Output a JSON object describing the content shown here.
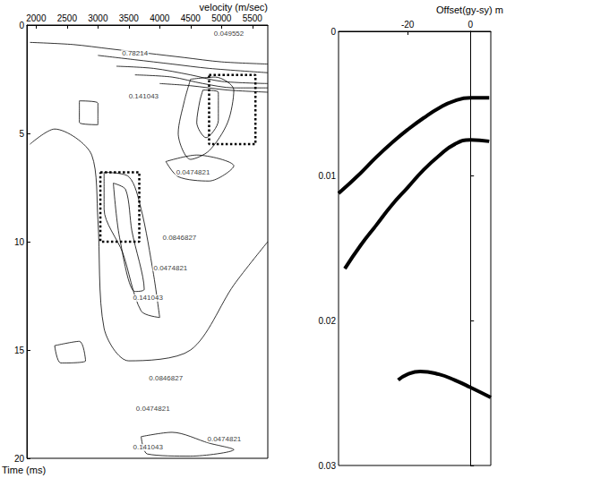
{
  "chart_data": [
    {
      "type": "contour",
      "x_label": "velocity (m/sec)",
      "y_label": "Time (ms)",
      "xlim": [
        1850,
        5750
      ],
      "xticks": [
        2000,
        2500,
        3000,
        3500,
        4000,
        4500,
        5000,
        5500
      ],
      "ylim": [
        0,
        20
      ],
      "yticks": [
        0,
        5,
        10,
        15,
        20
      ],
      "color": "#000000",
      "contours": [
        [
          [
            1900,
            0.8
          ],
          [
            2600,
            0.9
          ],
          [
            3200,
            1.1
          ],
          [
            3800,
            1.3
          ],
          [
            4400,
            1.5
          ],
          [
            5000,
            1.7
          ],
          [
            5750,
            1.8
          ]
        ],
        [
          [
            3000,
            1.4
          ],
          [
            3600,
            1.6
          ],
          [
            4200,
            1.8
          ],
          [
            4800,
            2.0
          ],
          [
            5750,
            2.2
          ]
        ],
        [
          [
            3300,
            1.9
          ],
          [
            3900,
            2.0
          ],
          [
            4500,
            2.3
          ],
          [
            5000,
            2.6
          ],
          [
            5750,
            2.7
          ]
        ],
        [
          [
            3600,
            2.3
          ],
          [
            4200,
            2.4
          ],
          [
            4700,
            2.7
          ],
          [
            5200,
            2.9
          ],
          [
            5750,
            2.9
          ]
        ],
        [
          [
            4000,
            2.7
          ],
          [
            4500,
            2.8
          ],
          [
            5100,
            3.0
          ],
          [
            5750,
            3.1
          ]
        ],
        [
          [
            4500,
            2.5
          ],
          [
            4900,
            2.4
          ],
          [
            5200,
            3.0
          ],
          [
            5100,
            4.5
          ],
          [
            4800,
            5.8
          ],
          [
            4500,
            6.2
          ],
          [
            4300,
            5.0
          ],
          [
            4400,
            3.5
          ],
          [
            4500,
            2.5
          ]
        ],
        [
          [
            4700,
            3.0
          ],
          [
            4950,
            3.1
          ],
          [
            4950,
            4.4
          ],
          [
            4750,
            5.2
          ],
          [
            4600,
            4.5
          ],
          [
            4650,
            3.5
          ],
          [
            4700,
            3.0
          ]
        ],
        [
          [
            4100,
            6.3
          ],
          [
            4600,
            6.0
          ],
          [
            5200,
            6.5
          ],
          [
            4800,
            7.2
          ],
          [
            4300,
            7.0
          ],
          [
            4100,
            6.3
          ]
        ],
        [
          [
            3100,
            6.8
          ],
          [
            3500,
            7.0
          ],
          [
            3700,
            8.5
          ],
          [
            3900,
            11.5
          ],
          [
            4000,
            13.5
          ],
          [
            3700,
            13.2
          ],
          [
            3400,
            10.5
          ],
          [
            3100,
            8.5
          ],
          [
            3100,
            6.8
          ]
        ],
        [
          [
            3250,
            7.3
          ],
          [
            3450,
            7.6
          ],
          [
            3550,
            9.5
          ],
          [
            3750,
            12.2
          ],
          [
            3600,
            12.3
          ],
          [
            3350,
            9.8
          ],
          [
            3250,
            7.3
          ]
        ],
        [
          [
            3700,
            19.0
          ],
          [
            4200,
            18.8
          ],
          [
            4800,
            19.3
          ],
          [
            5200,
            19.6
          ],
          [
            4500,
            19.9
          ],
          [
            3800,
            19.8
          ],
          [
            3700,
            19.0
          ]
        ],
        [
          [
            2700,
            3.5
          ],
          [
            3000,
            3.6
          ],
          [
            3000,
            4.6
          ],
          [
            2700,
            4.5
          ],
          [
            2700,
            3.5
          ]
        ],
        [
          [
            2300,
            14.8
          ],
          [
            2700,
            14.6
          ],
          [
            2800,
            15.5
          ],
          [
            2400,
            15.6
          ],
          [
            2300,
            14.8
          ]
        ],
        [
          [
            1900,
            5.5
          ],
          [
            2300,
            4.8
          ],
          [
            2900,
            6.0
          ],
          [
            3000,
            9.0
          ],
          [
            3100,
            14.0
          ],
          [
            3500,
            15.5
          ],
          [
            4500,
            15.0
          ],
          [
            5200,
            12.0
          ],
          [
            5750,
            10.0
          ]
        ]
      ],
      "annotations": [
        {
          "text": "0.049552",
          "x": 5120,
          "y": 0.4
        },
        {
          "text": "0.78214",
          "x": 3600,
          "y": 1.3
        },
        {
          "text": "0.141043",
          "x": 3740,
          "y": 3.3
        },
        {
          "text": "0.0474821",
          "x": 4540,
          "y": 6.8
        },
        {
          "text": "0.0846827",
          "x": 4320,
          "y": 9.8
        },
        {
          "text": "0.0474821",
          "x": 4175,
          "y": 11.2
        },
        {
          "text": "0.141043",
          "x": 3810,
          "y": 12.6
        },
        {
          "text": "0.0846827",
          "x": 4100,
          "y": 16.3
        },
        {
          "text": "0.0474821",
          "x": 3890,
          "y": 17.7
        },
        {
          "text": "0.0474821",
          "x": 5045,
          "y": 19.1
        },
        {
          "text": "0.141043",
          "x": 3810,
          "y": 19.5
        }
      ],
      "regions": [
        {
          "x": [
            4800,
            5550
          ],
          "y": [
            2.3,
            5.5
          ],
          "line_style": "dotted"
        },
        {
          "x": [
            3040,
            3670
          ],
          "y": [
            6.8,
            10.0
          ],
          "line_style": "dotted"
        }
      ]
    },
    {
      "type": "line",
      "x_label": "Offset(gy-sy) m",
      "xlim": [
        -42,
        6.5
      ],
      "xticks": [
        -20,
        0
      ],
      "ylim": [
        0,
        0.03
      ],
      "yticks": [
        0,
        0.01,
        0.02,
        0.03
      ],
      "color": "#000000",
      "series": [
        {
          "values": [
            [
              -42,
              0.0112
            ],
            [
              -35,
              0.0098
            ],
            [
              -30,
              0.0087
            ],
            [
              -25,
              0.0077
            ],
            [
              -20,
              0.0068
            ],
            [
              -15,
              0.006
            ],
            [
              -10,
              0.0053
            ],
            [
              -5,
              0.0048
            ],
            [
              0,
              0.0046
            ],
            [
              6,
              0.0046
            ]
          ]
        },
        {
          "values": [
            [
              -40,
              0.0164
            ],
            [
              -35,
              0.0148
            ],
            [
              -30,
              0.0134
            ],
            [
              -25,
              0.012
            ],
            [
              -20,
              0.0108
            ],
            [
              -15,
              0.0096
            ],
            [
              -10,
              0.0086
            ],
            [
              -5,
              0.0078
            ],
            [
              0,
              0.0075
            ],
            [
              6,
              0.0076
            ]
          ]
        },
        {
          "values": [
            [
              -23,
              0.0241
            ],
            [
              -20,
              0.0237
            ],
            [
              -16,
              0.0235
            ],
            [
              -10,
              0.0237
            ],
            [
              -5,
              0.0241
            ],
            [
              0,
              0.0246
            ],
            [
              6.5,
              0.0253
            ]
          ]
        }
      ]
    }
  ]
}
